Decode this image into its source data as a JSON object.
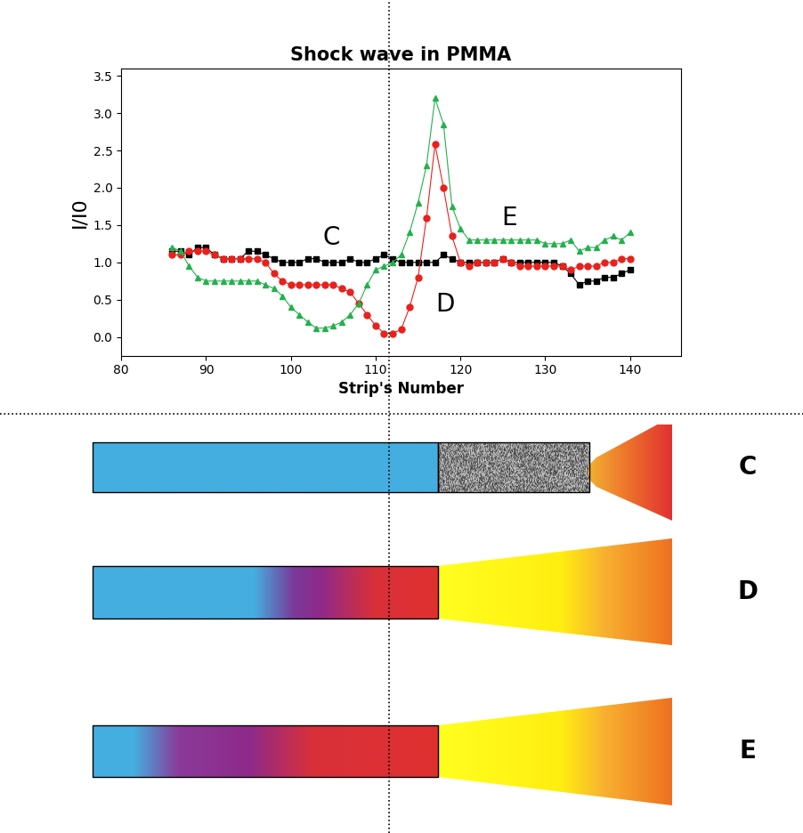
{
  "chart_data": {
    "type": "line",
    "title": "Shock wave in PMMA",
    "x_label": "Strip's Number",
    "y_label": "I/I0",
    "x": [
      86,
      87,
      88,
      89,
      90,
      91,
      92,
      93,
      94,
      95,
      96,
      97,
      98,
      99,
      100,
      101,
      102,
      103,
      104,
      105,
      106,
      107,
      108,
      109,
      110,
      111,
      112,
      113,
      114,
      115,
      116,
      117,
      118,
      119,
      120,
      121,
      122,
      123,
      124,
      125,
      126,
      127,
      128,
      129,
      130,
      131,
      132,
      133,
      134,
      135,
      136,
      137,
      138,
      139,
      140
    ],
    "series": [
      {
        "color": "#000000",
        "marker": "square",
        "line_style": "solid",
        "values": [
          1.15,
          1.15,
          1.1,
          1.2,
          1.2,
          1.1,
          1.05,
          1.05,
          1.05,
          1.15,
          1.15,
          1.1,
          1.05,
          1.0,
          1.0,
          1.0,
          1.05,
          1.05,
          1.0,
          1.0,
          1.0,
          1.05,
          1.0,
          1.0,
          1.05,
          1.1,
          1.05,
          1.0,
          1.0,
          1.0,
          1.0,
          1.0,
          1.1,
          1.05,
          1.0,
          1.0,
          1.0,
          1.0,
          1.0,
          1.05,
          1.0,
          1.0,
          1.0,
          1.0,
          1.0,
          1.0,
          0.95,
          0.85,
          0.7,
          0.75,
          0.75,
          0.8,
          0.8,
          0.85,
          0.9
        ]
      },
      {
        "color": "#e8211c",
        "marker": "circle",
        "line_style": "solid",
        "values": [
          1.1,
          1.1,
          1.15,
          1.15,
          1.15,
          1.1,
          1.05,
          1.05,
          1.05,
          1.05,
          1.05,
          1.0,
          0.85,
          0.75,
          0.7,
          0.7,
          0.7,
          0.7,
          0.7,
          0.7,
          0.65,
          0.6,
          0.45,
          0.3,
          0.15,
          0.05,
          0.05,
          0.1,
          0.4,
          0.8,
          1.6,
          2.58,
          2.0,
          1.35,
          1.0,
          0.95,
          1.0,
          1.0,
          1.0,
          1.05,
          1.0,
          0.95,
          0.95,
          0.95,
          0.95,
          0.95,
          0.95,
          0.9,
          0.95,
          0.95,
          0.95,
          1.0,
          1.0,
          1.05,
          1.05
        ]
      },
      {
        "color": "#22b14c",
        "marker": "triangle",
        "line_style": "solid",
        "values": [
          1.2,
          1.15,
          0.95,
          0.8,
          0.75,
          0.75,
          0.75,
          0.75,
          0.75,
          0.75,
          0.75,
          0.7,
          0.65,
          0.55,
          0.4,
          0.3,
          0.2,
          0.12,
          0.12,
          0.15,
          0.2,
          0.3,
          0.45,
          0.7,
          0.9,
          0.95,
          1.0,
          1.1,
          1.4,
          1.8,
          2.3,
          3.2,
          2.85,
          1.75,
          1.45,
          1.3,
          1.3,
          1.3,
          1.3,
          1.3,
          1.3,
          1.3,
          1.3,
          1.3,
          1.25,
          1.25,
          1.25,
          1.3,
          1.15,
          1.2,
          1.2,
          1.3,
          1.35,
          1.3,
          1.4
        ]
      }
    ],
    "xlim": [
      80,
      146
    ],
    "xticks": [
      80,
      90,
      100,
      110,
      120,
      130,
      140
    ],
    "ylim": [
      -0.25,
      3.6
    ],
    "yticks": [
      {
        "value": 0.0,
        "label": "0.0"
      },
      {
        "value": 0.5,
        "label": "0.5"
      },
      {
        "value": 1.0,
        "label": "1.0"
      },
      {
        "value": 1.5,
        "label": "1.5"
      },
      {
        "value": 2.0,
        "label": "2.0"
      },
      {
        "value": 2.5,
        "label": "2.5"
      },
      {
        "value": 3.0,
        "label": "3.0"
      },
      {
        "value": 3.5,
        "label": "3.5"
      }
    ],
    "annotations": [
      {
        "text": "C",
        "x": 104.8,
        "y": 1.33
      },
      {
        "text": "D",
        "x": 118.2,
        "y": 0.44
      },
      {
        "text": "E",
        "x": 125.8,
        "y": 1.6
      }
    ]
  },
  "diagram": {
    "rows": [
      {
        "label": "C"
      },
      {
        "label": "D"
      },
      {
        "label": "E"
      }
    ]
  }
}
